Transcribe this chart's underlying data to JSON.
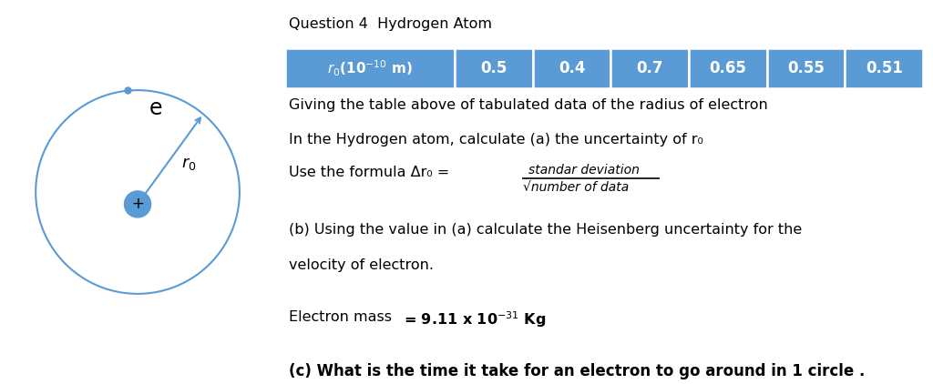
{
  "title": "Question 4  Hydrogen Atom",
  "table_header": "r₀(10⁻¹⁰ m)",
  "table_values": [
    "0.5",
    "0.4",
    "0.7",
    "0.65",
    "0.55",
    "0.51"
  ],
  "table_bg_color": "#5B9BD5",
  "table_text_color": "#FFFFFF",
  "body_bg_color": "#FFFFFF",
  "text_color": "#000000",
  "line1": "Giving the table above of tabulated data of the radius of electron",
  "line2": "In the Hydrogen atom, calculate (a) the uncertainty of r₀",
  "fraction_num": "standar deviation",
  "fraction_den": "number of data",
  "line4": "(b) Using the value in (a) calculate the Heisenberg uncertainty for the",
  "line5": "velocity of electron.",
  "line7": "(c) What is the time it take for an electron to go around in 1 circle .",
  "circle_color": "#5B9BD5",
  "atom_color": "#5B9BD5",
  "electron_color": "#5B9BD5"
}
